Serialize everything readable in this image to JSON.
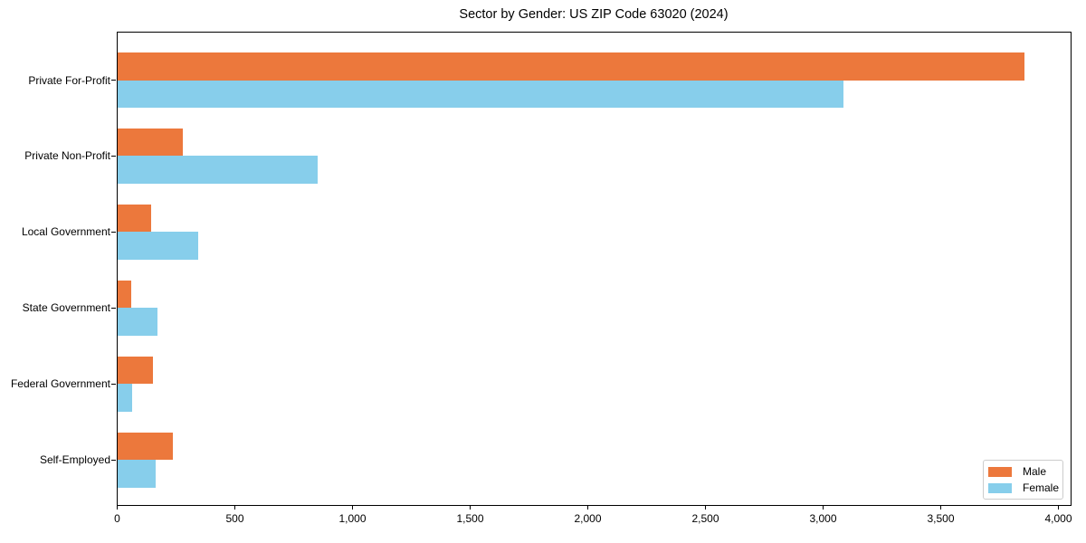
{
  "chart_data": {
    "type": "bar",
    "orientation": "horizontal",
    "title": "Sector by Gender: US ZIP Code 63020 (2024)",
    "xlabel": "",
    "ylabel": "",
    "categories": [
      "Private For-Profit",
      "Private Non-Profit",
      "Local Government",
      "State Government",
      "Federal Government",
      "Self-Employed"
    ],
    "series": [
      {
        "name": "Male",
        "color": "#EC783C",
        "values": [
          3855,
          280,
          145,
          60,
          150,
          235
        ]
      },
      {
        "name": "Female",
        "color": "#87CEEB",
        "values": [
          3085,
          850,
          345,
          170,
          65,
          165
        ]
      }
    ],
    "xlim": [
      0,
      4050
    ],
    "xticks": [
      0,
      500,
      1000,
      1500,
      2000,
      2500,
      3000,
      3500,
      4000
    ],
    "xtick_labels": [
      "0",
      "500",
      "1,000",
      "1,500",
      "2,000",
      "2,500",
      "3,000",
      "3,500",
      "4,000"
    ],
    "grid": false,
    "legend_position": "lower right"
  },
  "legend": {
    "male_label": "Male",
    "female_label": "Female"
  }
}
